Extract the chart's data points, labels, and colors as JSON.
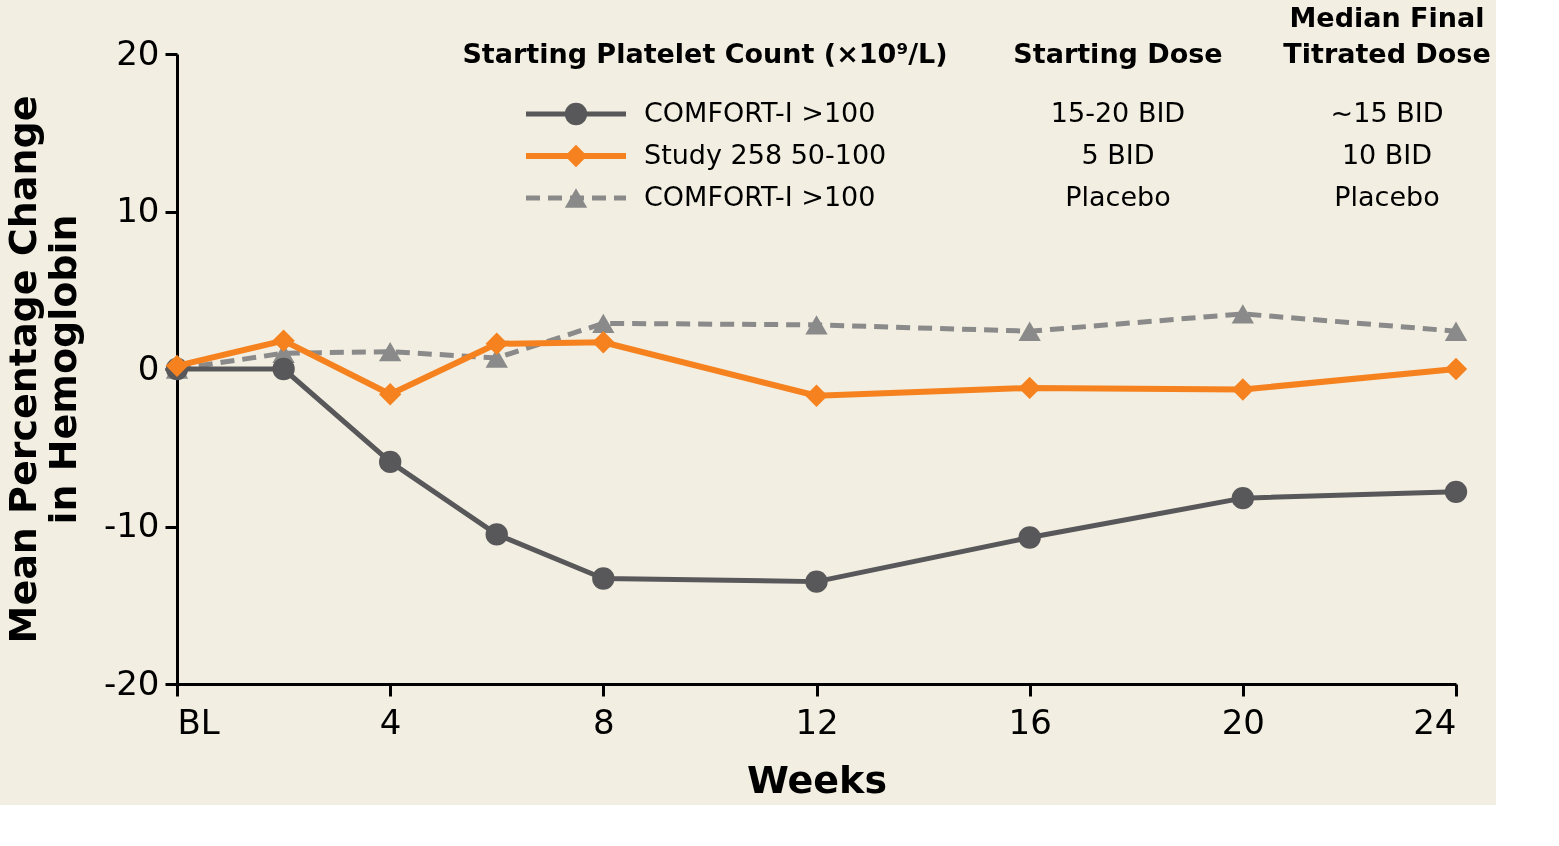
{
  "chart_data": {
    "type": "line",
    "xlabel": "Weeks",
    "ylabel": "Mean Percentage Change\nin Hemoglobin",
    "legend_title": "Starting Platelet Count (×10⁹/L)",
    "x": [
      0,
      2,
      4,
      6,
      8,
      12,
      16,
      20,
      24
    ],
    "series": [
      {
        "name": "COMFORT-I >100",
        "color": "#58585a",
        "marker": "circle",
        "line_style": "solid",
        "values": [
          0,
          0,
          -5.9,
          -10.5,
          -13.3,
          -13.5,
          -10.7,
          -8.2,
          -7.8
        ]
      },
      {
        "name": "Study 258 50-100",
        "color": "#f5821f",
        "marker": "diamond",
        "line_style": "solid",
        "values": [
          0.2,
          1.8,
          -1.6,
          1.6,
          1.7,
          -1.7,
          -1.2,
          -1.3,
          0
        ]
      },
      {
        "name": "COMFORT-I >100",
        "color": "#8a8a8a",
        "marker": "triangle",
        "line_style": "dashed",
        "values": [
          0,
          1.0,
          1.1,
          0.7,
          2.9,
          2.8,
          2.4,
          3.5,
          2.4
        ]
      }
    ],
    "annotations": [
      "Starting Dose",
      "15-20 BID",
      "5 BID",
      "Placebo",
      "Median Final\nTitrated Dose",
      "~15 BID",
      "10 BID",
      "Placebo"
    ],
    "xlim": [
      0,
      24
    ],
    "ylim": [
      -20,
      20
    ],
    "xticks": [
      {
        "value": 0,
        "label": "BL"
      },
      4,
      8,
      12,
      16,
      20,
      24
    ],
    "yticks": [
      -20,
      -10,
      0,
      10,
      20
    ],
    "grid": false,
    "legend": "top"
  }
}
